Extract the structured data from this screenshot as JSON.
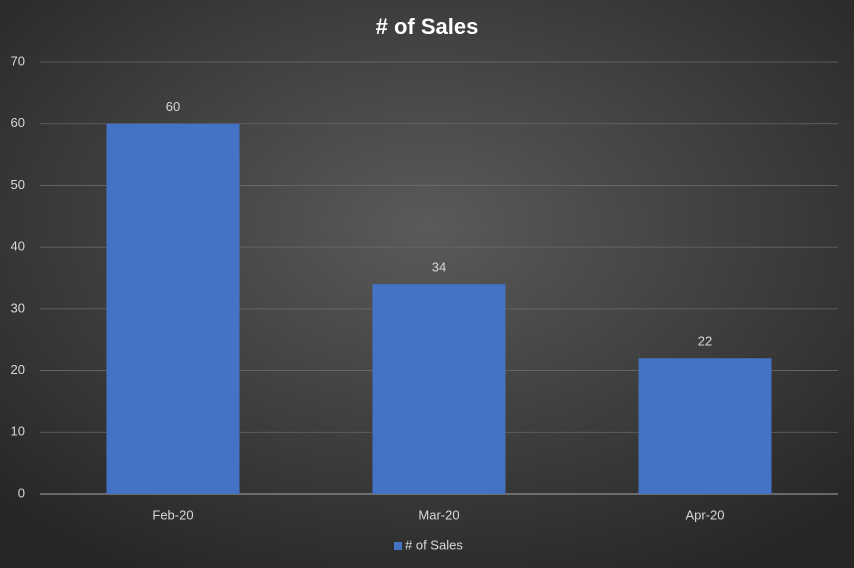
{
  "chart_data": {
    "type": "bar",
    "title": "# of Sales",
    "categories": [
      "Feb-20",
      "Mar-20",
      "Apr-20"
    ],
    "series": [
      {
        "name": "# of Sales",
        "color": "#4472c4",
        "values": [
          60,
          34,
          22
        ]
      }
    ],
    "ylim": [
      0,
      70
    ],
    "yticks": [
      0,
      10,
      20,
      30,
      40,
      50,
      60,
      70
    ],
    "grid": true,
    "legend": "bottom"
  }
}
